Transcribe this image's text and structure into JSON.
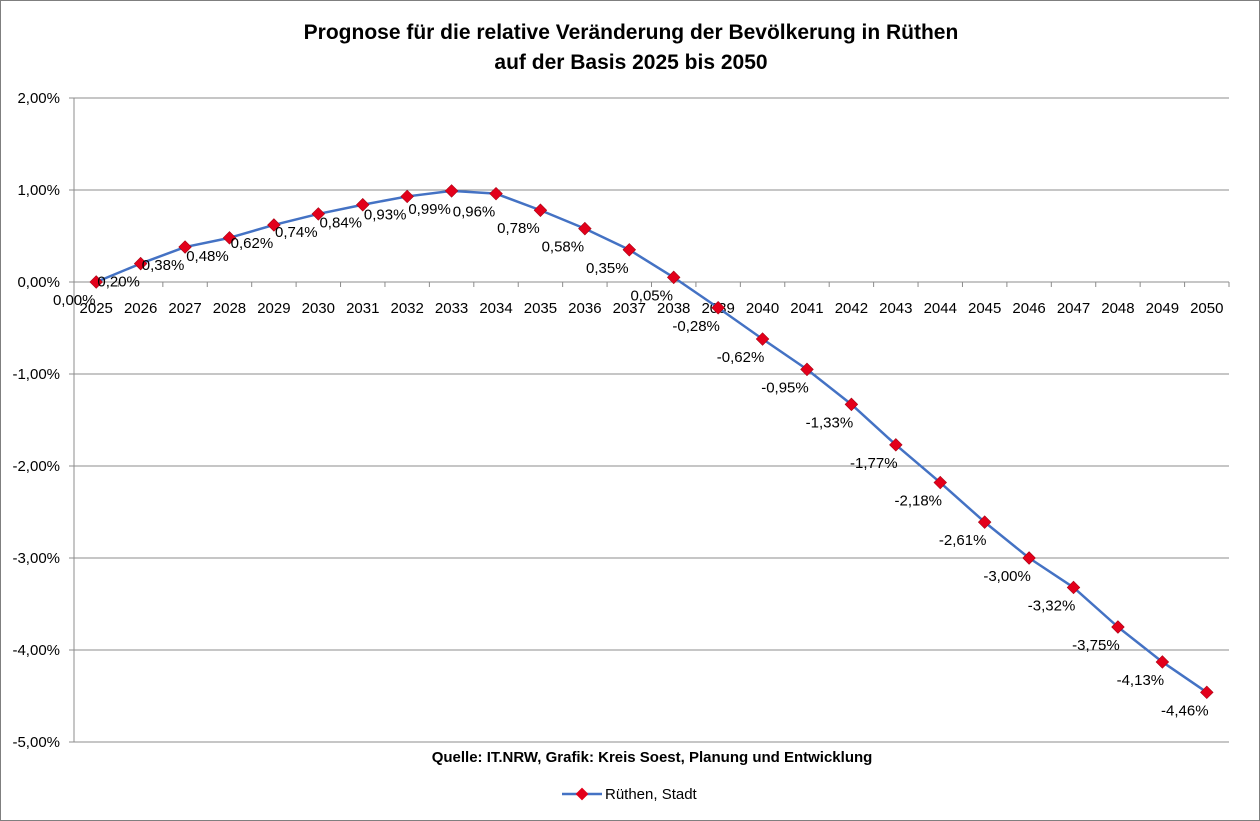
{
  "chart_data": {
    "type": "line",
    "title": [
      "Prognose für die relative Veränderung der Bevölkerung in Rüthen",
      "auf der Basis 2025 bis 2050"
    ],
    "categories": [
      "2025",
      "2026",
      "2027",
      "2028",
      "2029",
      "2030",
      "2031",
      "2032",
      "2033",
      "2034",
      "2035",
      "2036",
      "2037",
      "2038",
      "2039",
      "2040",
      "2041",
      "2042",
      "2043",
      "2044",
      "2045",
      "2046",
      "2047",
      "2048",
      "2049",
      "2050"
    ],
    "series": [
      {
        "name": "Rüthen, Stadt",
        "color": "#4472c4",
        "marker_color": "#e3001b",
        "values": [
          0.0,
          0.2,
          0.38,
          0.48,
          0.62,
          0.74,
          0.84,
          0.93,
          0.99,
          0.96,
          0.78,
          0.58,
          0.35,
          0.05,
          -0.28,
          -0.62,
          -0.95,
          -1.33,
          -1.77,
          -2.18,
          -2.61,
          -3.0,
          -3.32,
          -3.75,
          -4.13,
          -4.46
        ],
        "labels": [
          "0,00%",
          "0,20%",
          "0,38%",
          "0,48%",
          "0,62%",
          "0,74%",
          "0,84%",
          "0,93%",
          "0,99%",
          "0,96%",
          "0,78%",
          "0,58%",
          "0,35%",
          "0,05%",
          "-0,28%",
          "-0,62%",
          "-0,95%",
          "-1,33%",
          "-1,77%",
          "-2,18%",
          "-2,61%",
          "-3,00%",
          "-3,32%",
          "-3,75%",
          "-4,13%",
          "-4,46%"
        ]
      }
    ],
    "ylim": [
      -5,
      2
    ],
    "yticks": [
      2,
      1,
      0,
      -1,
      -2,
      -3,
      -4,
      -5
    ],
    "ytick_labels": [
      "2,00%",
      "1,00%",
      "0,00%",
      "-1,00%",
      "-2,00%",
      "-3,00%",
      "-4,00%",
      "-5,00%"
    ],
    "grid": true,
    "legend_position": "bottom",
    "source": "Quelle: IT.NRW, Grafik: Kreis Soest, Planung und Entwicklung"
  }
}
